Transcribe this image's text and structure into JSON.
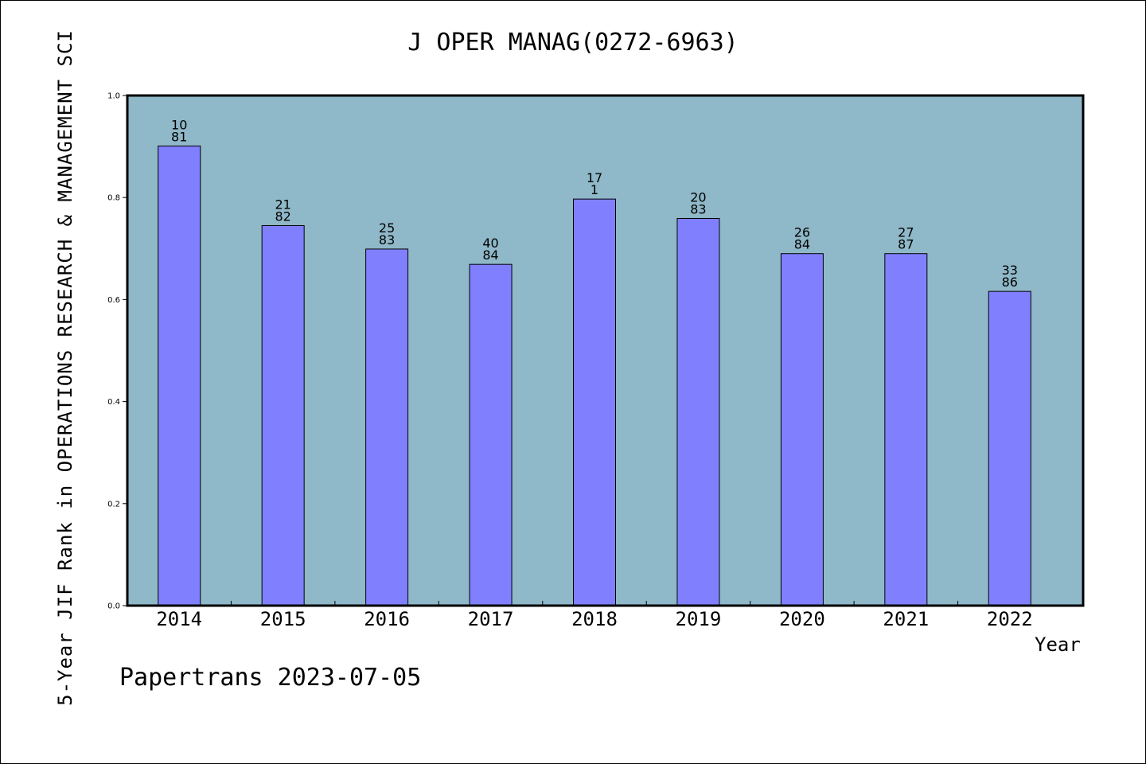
{
  "chart_data": {
    "type": "bar",
    "title": "J OPER MANAG(0272-6963)",
    "xlabel": "Year",
    "ylabel": "5-Year JIF Rank in OPERATIONS RESEARCH & MANAGEMENT SCI",
    "categories": [
      "2014",
      "2015",
      "2016",
      "2017",
      "2018",
      "2019",
      "2020",
      "2021",
      "2022"
    ],
    "values": [
      0.901,
      0.745,
      0.699,
      0.669,
      0.797,
      0.759,
      0.69,
      0.69,
      0.616
    ],
    "bar_labels": [
      [
        "10",
        "81"
      ],
      [
        "21",
        "82"
      ],
      [
        "25",
        "83"
      ],
      [
        "40",
        "84"
      ],
      [
        "17",
        "1"
      ],
      [
        "20",
        "83"
      ],
      [
        "26",
        "84"
      ],
      [
        "27",
        "87"
      ],
      [
        "33",
        "86"
      ]
    ],
    "ylim": [
      0,
      1.0
    ],
    "yticks": [
      "0.0",
      "0.2",
      "0.4",
      "0.6",
      "0.8",
      "1.0"
    ],
    "grid": false,
    "colors": {
      "plot_background": "#8fb8c8",
      "bar": "#8080ff",
      "bar_edge": "#000000"
    }
  },
  "footer": "Papertrans 2023-07-05"
}
